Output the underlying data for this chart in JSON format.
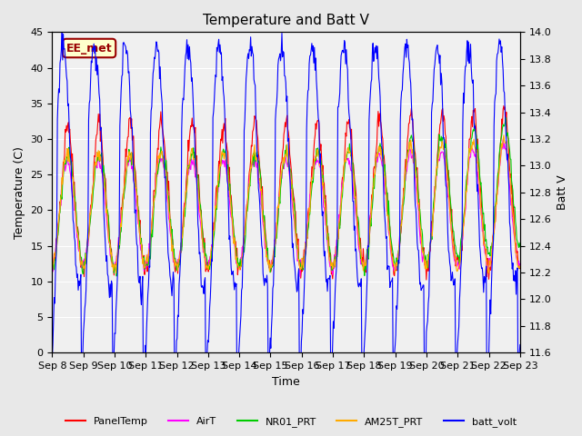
{
  "title": "Temperature and Batt V",
  "xlabel": "Time",
  "ylabel_left": "Temperature (C)",
  "ylabel_right": "Batt V",
  "ylim_left": [
    0,
    45
  ],
  "ylim_right": [
    11.6,
    14.0
  ],
  "annotation_text": "EE_met",
  "annotation_bg": "#ffffcc",
  "annotation_border": "#990000",
  "x_tick_labels": [
    "Sep 8",
    "Sep 9",
    "Sep 10",
    "Sep 11",
    "Sep 12",
    "Sep 13",
    "Sep 14",
    "Sep 15",
    "Sep 16",
    "Sep 17",
    "Sep 18",
    "Sep 19",
    "Sep 20",
    "Sep 21",
    "Sep 22",
    "Sep 23"
  ],
  "bg_color": "#e8e8e8",
  "plot_bg": "#f0f0f0",
  "grid_color": "white",
  "series_colors": {
    "PanelTemp": "#ff0000",
    "AirT": "#ff00ff",
    "NR01_PRT": "#00cc00",
    "AM25T_PRT": "#ffaa00",
    "batt_volt": "#0000ff"
  },
  "legend_entries": [
    "PanelTemp",
    "AirT",
    "NR01_PRT",
    "AM25T_PRT",
    "batt_volt"
  ],
  "n_days": 15,
  "pts_per_day": 48
}
